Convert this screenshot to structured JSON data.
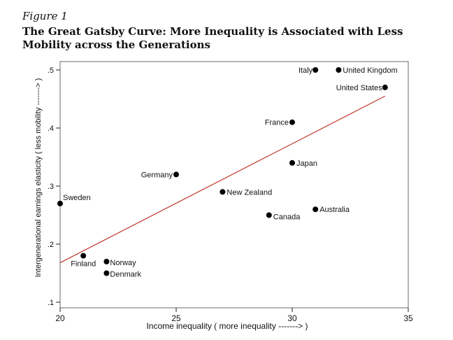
{
  "figure": {
    "label": "Figure 1",
    "title_line1": "The Great Gatsby Curve: More Inequality is Associated with Less",
    "title_line2": "Mobility across the Generations"
  },
  "chart_data": {
    "type": "scatter",
    "title": "The Great Gatsby Curve: More Inequality is Associated with Less Mobility across the Generations",
    "xlabel": "Income inequality ( more inequality -------> )",
    "ylabel": "Intergenerational earnings elasticity ( less mobility -------> )",
    "xlim": [
      20,
      35
    ],
    "ylim": [
      0.1,
      0.5
    ],
    "x_ticks": [
      20,
      25,
      30,
      35
    ],
    "x_tick_labels": [
      "20",
      "25",
      "30",
      "35"
    ],
    "y_ticks": [
      0.1,
      0.2,
      0.3,
      0.4,
      0.5
    ],
    "y_tick_labels": [
      ".1",
      ".2",
      ".3",
      ".4",
      ".5"
    ],
    "grid": false,
    "point_color": "#000000",
    "fit_line_color": "#c0392b",
    "points": [
      {
        "label": "Italy",
        "x": 31,
        "y": 0.5
      },
      {
        "label": "United Kingdom",
        "x": 32,
        "y": 0.5
      },
      {
        "label": "United States",
        "x": 34,
        "y": 0.47
      },
      {
        "label": "France",
        "x": 30,
        "y": 0.41
      },
      {
        "label": "Japan",
        "x": 30,
        "y": 0.34
      },
      {
        "label": "Germany",
        "x": 25,
        "y": 0.32
      },
      {
        "label": "New Zealand",
        "x": 27,
        "y": 0.29
      },
      {
        "label": "Sweden",
        "x": 20,
        "y": 0.27
      },
      {
        "label": "Canada",
        "x": 29,
        "y": 0.25
      },
      {
        "label": "Australia",
        "x": 31,
        "y": 0.26
      },
      {
        "label": "Finland",
        "x": 21,
        "y": 0.18
      },
      {
        "label": "Norway",
        "x": 22,
        "y": 0.17
      },
      {
        "label": "Denmark",
        "x": 22,
        "y": 0.15
      }
    ],
    "fit_line": {
      "x": [
        20,
        34
      ],
      "y": [
        0.168,
        0.455
      ]
    }
  }
}
